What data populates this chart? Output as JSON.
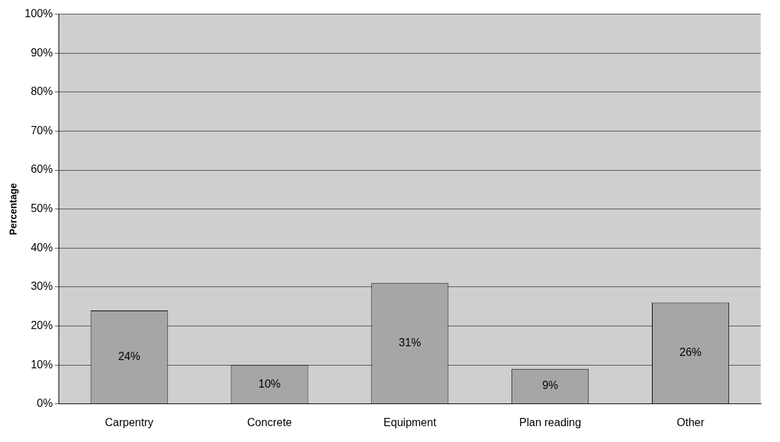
{
  "chart_data": {
    "type": "bar",
    "ylabel": "Percentage",
    "categories": [
      "Carpentry",
      "Concrete",
      "Equipment",
      "Plan reading",
      "Other"
    ],
    "values": [
      24,
      10,
      31,
      9,
      26
    ],
    "value_labels": [
      "24%",
      "10%",
      "31%",
      "9%",
      "26%"
    ],
    "color": "#a6a6a6",
    "ylim": [
      0,
      100
    ],
    "yticks": [
      {
        "value": 0,
        "label": "0%"
      },
      {
        "value": 10,
        "label": "10%"
      },
      {
        "value": 20,
        "label": "20%"
      },
      {
        "value": 30,
        "label": "30%"
      },
      {
        "value": 40,
        "label": "40%"
      },
      {
        "value": 50,
        "label": "50%"
      },
      {
        "value": 60,
        "label": "60%"
      },
      {
        "value": 70,
        "label": "70%"
      },
      {
        "value": 80,
        "label": "80%"
      },
      {
        "value": 90,
        "label": "90%"
      },
      {
        "value": 100,
        "label": "100%"
      }
    ],
    "grid": "y",
    "legend": false
  }
}
